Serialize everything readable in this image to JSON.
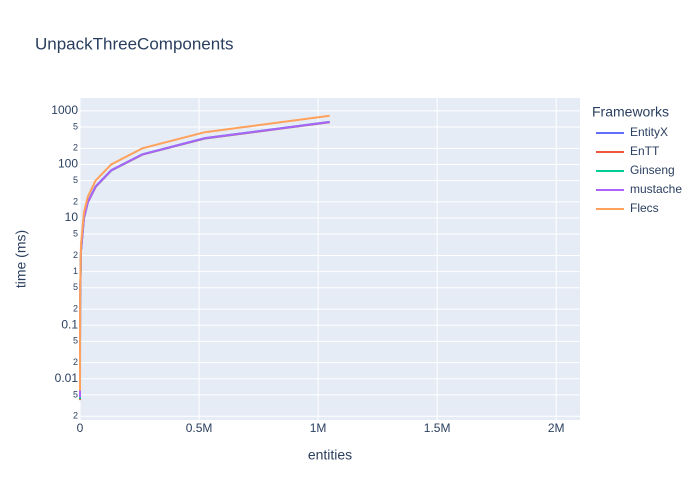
{
  "chart_data": {
    "type": "line",
    "title": "UnpackThreeComponents",
    "x_label": "entities",
    "y_label": "time (ms)",
    "legend_title": "Frameworks",
    "x": [
      8,
      64,
      512,
      4096,
      16384,
      32768,
      65536,
      131072,
      262144,
      524288,
      1048576
    ],
    "series": [
      {
        "name": "EntityX",
        "color": "#636efa",
        "values": [
          0.005,
          0.04,
          0.31,
          2.5,
          10,
          20,
          39,
          78,
          155,
          310,
          625
        ]
      },
      {
        "name": "EnTT",
        "color": "#ef553b",
        "values": [
          0.004,
          0.038,
          0.3,
          2.4,
          9.8,
          19.5,
          38,
          77,
          153,
          305,
          615
        ]
      },
      {
        "name": "Ginseng",
        "color": "#00cc96",
        "values": [
          0.0042,
          0.039,
          0.3,
          2.45,
          9.9,
          19.8,
          38.5,
          77,
          154,
          307,
          620
        ]
      },
      {
        "name": "mustache",
        "color": "#ab63fa",
        "values": [
          0.0045,
          0.039,
          0.31,
          2.45,
          9.9,
          19.8,
          38.5,
          77.5,
          154,
          308,
          620
        ]
      },
      {
        "name": "Flecs",
        "color": "#ffa15a",
        "values": [
          0.006,
          0.05,
          0.4,
          3.2,
          12.6,
          25,
          50,
          100,
          200,
          400,
          810
        ]
      }
    ],
    "xlim": [
      0,
      2100000
    ],
    "xticks": [
      0,
      {
        "value": 500000,
        "label": "0.5M"
      },
      {
        "value": 1000000,
        "label": "1M"
      },
      {
        "value": 1500000,
        "label": "1.5M"
      },
      {
        "value": 2000000,
        "label": "2M"
      }
    ],
    "ylim": [
      0.0017,
      1740
    ],
    "ylog": true,
    "yticks": [
      {
        "value": 0.002,
        "label": "2"
      },
      {
        "value": 0.005,
        "label": "5"
      },
      0.01,
      {
        "value": 0.02,
        "label": "2"
      },
      {
        "value": 0.05,
        "label": "5"
      },
      0.1,
      {
        "value": 0.2,
        "label": "2"
      },
      {
        "value": 0.5,
        "label": "5"
      },
      1,
      {
        "value": 2,
        "label": "2"
      },
      {
        "value": 5,
        "label": "5"
      },
      10,
      {
        "value": 20,
        "label": "2"
      },
      {
        "value": 50,
        "label": "5"
      },
      100,
      {
        "value": 200,
        "label": "2"
      },
      {
        "value": 500,
        "label": "5"
      },
      1000
    ],
    "grid": true,
    "legend": "right"
  }
}
